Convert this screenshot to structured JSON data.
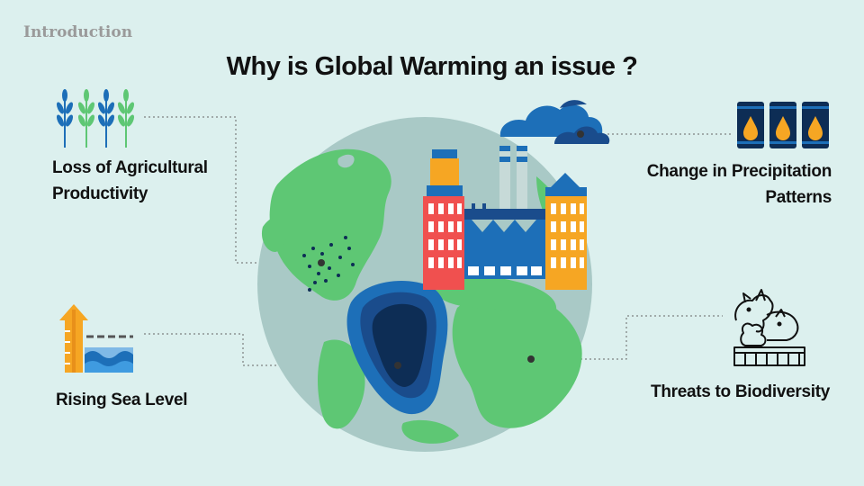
{
  "section_label": "Introduction",
  "title": "Why is Global Warming an issue ?",
  "items": [
    {
      "label_line1": "Loss of Agricultural",
      "label_line2": "Productivity",
      "icon": "wheat-icon"
    },
    {
      "label_line1": "Change in Precipitation",
      "label_line2": "Patterns",
      "icon": "water-barrels-icon"
    },
    {
      "label_line1": "Rising Sea Level",
      "icon": "sea-level-rise-icon"
    },
    {
      "label_line1": "Threats to Biodiversity",
      "icon": "animals-icon"
    }
  ],
  "colors": {
    "background": "#dcf0ee",
    "ocean": "#a9c9c6",
    "land": "#5ec774",
    "factory_red": "#f0504f",
    "factory_orange": "#f6a623",
    "factory_blue": "#1d6fb8",
    "navy": "#0d2d55"
  }
}
